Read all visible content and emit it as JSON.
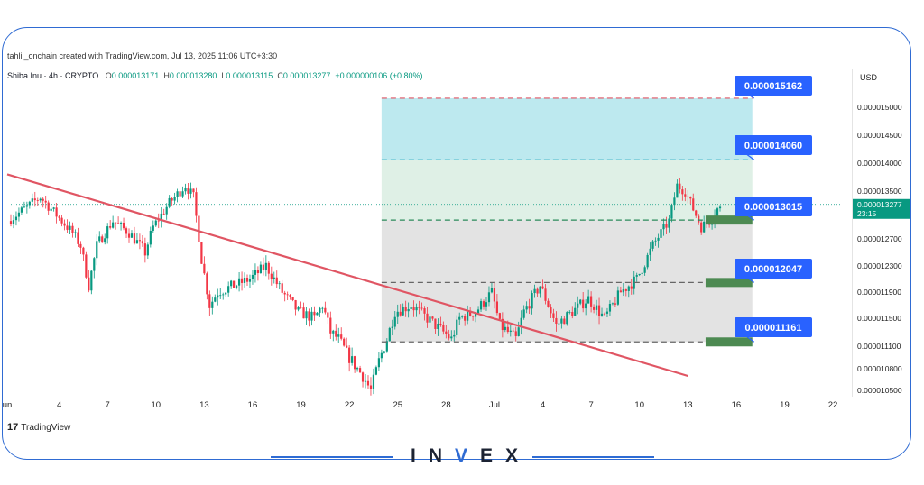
{
  "header": {
    "credit": "tahlil_onchain created with TradingView.com, Jul 13, 2025 11:06 UTC+3:30",
    "symbol": "Shiba Inu · 4h · CRYPTO",
    "o_label": "O",
    "o_value": "0.000013171",
    "h_label": "H",
    "h_value": "0.000013280",
    "l_label": "L",
    "l_value": "0.000013115",
    "c_label": "C",
    "c_value": "0.000013277",
    "change": "+0.000000106 (+0.80%)"
  },
  "currency": "USD",
  "watermark": {
    "tv": "TradingView",
    "brand_left": "IN",
    "brand_v": "V",
    "brand_right": "EX"
  },
  "colors": {
    "up": "#089981",
    "down": "#f23645",
    "trendline": "#e05563",
    "label_bg": "#2962ff",
    "target_zone": "#bde9ef",
    "mid_zone": "#dff0e6",
    "lower_zone": "#e3e3e3",
    "support_bar": "#4d8a52"
  },
  "chart_data": {
    "type": "candlestick",
    "title": "",
    "xlabel": "",
    "ylabel": "",
    "ylim": [
      1.03e-05,
      1.54e-05
    ],
    "y_ticks": [
      "0.000015000",
      "0.000014500",
      "0.000014000",
      "0.000013500",
      "0.000012700",
      "0.000012300",
      "0.000011900",
      "0.000011500",
      "0.000011100",
      "0.000010800",
      "0.000010500"
    ],
    "y_tick_values": [
      1.5e-05,
      1.45e-05,
      1.4e-05,
      1.35e-05,
      1.27e-05,
      1.23e-05,
      1.19e-05,
      1.15e-05,
      1.11e-05,
      1.08e-05,
      1.05e-05
    ],
    "x_ticks": [
      "un",
      "4",
      "7",
      "10",
      "13",
      "16",
      "19",
      "22",
      "25",
      "28",
      "Jul",
      "4",
      "7",
      "10",
      "13",
      "16",
      "19",
      "22"
    ],
    "x_tick_day_index": [
      0,
      3,
      6,
      9,
      12,
      15,
      18,
      21,
      24,
      27,
      30,
      33,
      36,
      39,
      42,
      45,
      48,
      51
    ],
    "current_price": "0.000013277",
    "countdown": "23:15",
    "current_price_value": 1.3277e-05,
    "levels": [
      {
        "label": "0.000015162",
        "value": 1.5162e-05,
        "style": "red-dash"
      },
      {
        "label": "0.000014060",
        "value": 1.406e-05,
        "style": "teal-dash"
      },
      {
        "label": "0.000013015",
        "value": 1.3015e-05,
        "style": "green-dash"
      },
      {
        "label": "0.000012047",
        "value": 1.2047e-05,
        "style": "gray-dash"
      },
      {
        "label": "0.000011161",
        "value": 1.1161e-05,
        "style": "gray-dash"
      }
    ],
    "trendline": {
      "start": {
        "day": 0,
        "value": 1.38e-05
      },
      "end": {
        "day": 42,
        "value": 1.07e-05
      }
    },
    "zones": [
      {
        "name": "target",
        "from_value": 1.406e-05,
        "to_value": 1.5162e-05,
        "from_day": 23,
        "to_day": 46
      },
      {
        "name": "mid",
        "from_value": 1.3015e-05,
        "to_value": 1.406e-05,
        "from_day": 23,
        "to_day": 46
      },
      {
        "name": "lower",
        "from_value": 1.1161e-05,
        "to_value": 1.3015e-05,
        "from_day": 23,
        "to_day": 46
      }
    ],
    "support_bars": [
      1.3015e-05,
      1.2047e-05,
      1.1161e-05
    ],
    "path": [
      [
        0,
        1.3e-05
      ],
      [
        1,
        1.32e-05
      ],
      [
        2,
        1.34e-05
      ],
      [
        3,
        1.31e-05
      ],
      [
        4,
        1.28e-05
      ],
      [
        4.5,
        1.26e-05
      ],
      [
        5,
        1.2e-05
      ],
      [
        5.5,
        1.26e-05
      ],
      [
        6,
        1.28e-05
      ],
      [
        6.5,
        1.3e-05
      ],
      [
        7.5,
        1.28e-05
      ],
      [
        8.5,
        1.25e-05
      ],
      [
        9,
        1.29e-05
      ],
      [
        10,
        1.33e-05
      ],
      [
        11,
        1.36e-05
      ],
      [
        11.5,
        1.34e-05
      ],
      [
        12,
        1.24e-05
      ],
      [
        12.5,
        1.17e-05
      ],
      [
        13,
        1.19e-05
      ],
      [
        14,
        1.2e-05
      ],
      [
        15,
        1.21e-05
      ],
      [
        16,
        1.23e-05
      ],
      [
        17,
        1.19e-05
      ],
      [
        18,
        1.16e-05
      ],
      [
        19,
        1.15e-05
      ],
      [
        19.5,
        1.17e-05
      ],
      [
        20,
        1.13e-05
      ],
      [
        20.5,
        1.12e-05
      ],
      [
        21,
        1.1e-05
      ],
      [
        22,
        1.07e-05
      ],
      [
        22.5,
        1.05e-05
      ],
      [
        23,
        1.09e-05
      ],
      [
        23.5,
        1.12e-05
      ],
      [
        24,
        1.16e-05
      ],
      [
        25,
        1.17e-05
      ],
      [
        26,
        1.15e-05
      ],
      [
        27,
        1.13e-05
      ],
      [
        27.5,
        1.12e-05
      ],
      [
        28,
        1.15e-05
      ],
      [
        29,
        1.16e-05
      ],
      [
        30,
        1.19e-05
      ],
      [
        30.5,
        1.14e-05
      ],
      [
        31,
        1.13e-05
      ],
      [
        31.5,
        1.12e-05
      ],
      [
        32,
        1.16e-05
      ],
      [
        33,
        1.2e-05
      ],
      [
        33.5,
        1.17e-05
      ],
      [
        34,
        1.14e-05
      ],
      [
        35,
        1.16e-05
      ],
      [
        36,
        1.18e-05
      ],
      [
        37,
        1.15e-05
      ],
      [
        38,
        1.19e-05
      ],
      [
        39,
        1.21e-05
      ],
      [
        40,
        1.26e-05
      ],
      [
        41,
        1.3e-05
      ],
      [
        41.5,
        1.36e-05
      ],
      [
        42,
        1.35e-05
      ],
      [
        42.5,
        1.32e-05
      ],
      [
        43,
        1.29e-05
      ],
      [
        43.5,
        1.3e-05
      ],
      [
        44,
        1.32e-05
      ]
    ]
  }
}
